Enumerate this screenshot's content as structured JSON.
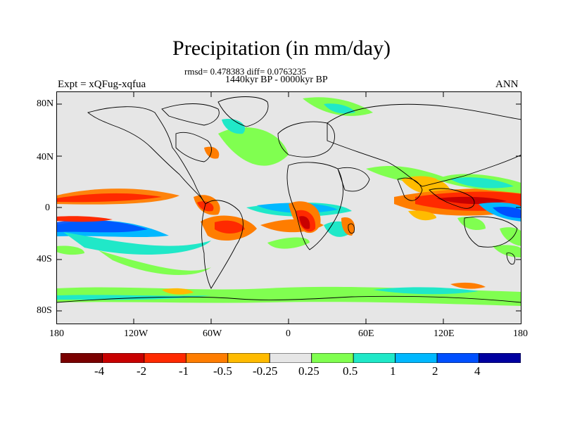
{
  "title": "Precipitation (in mm/day)",
  "stats": "rmsd= 0.478383 diff= 0.0763235",
  "period": "1440kyr BP - 0000kyr BP",
  "experiment": "Expt = xQFug-xqfua",
  "season": "ANN",
  "map": {
    "y_tick_labels": [
      "80N",
      "40N",
      "0",
      "40S",
      "80S"
    ],
    "x_tick_labels": [
      "180",
      "120W",
      "60W",
      "0",
      "60E",
      "120E",
      "180"
    ],
    "land_line_color": "#000000",
    "background_color": "#e6e6e6"
  },
  "colorbar": {
    "colors": [
      "#7a0000",
      "#c80000",
      "#ff2a00",
      "#ff7d00",
      "#ffbb00",
      "#e6e6e6",
      "#80ff50",
      "#20e8c8",
      "#00b8ff",
      "#0050ff",
      "#0000a0"
    ],
    "labels": [
      "-4",
      "-2",
      "-1",
      "-0.5",
      "-0.25",
      "0.25",
      "0.5",
      "1",
      "2",
      "4"
    ]
  }
}
